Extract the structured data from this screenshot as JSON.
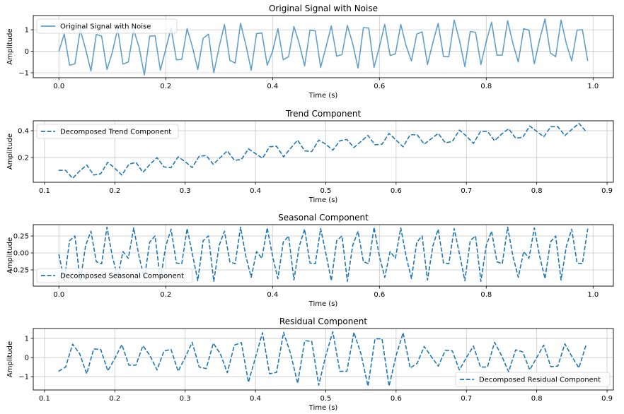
{
  "chart_data": [
    {
      "type": "line",
      "title": "Original Signal with Noise",
      "xlabel": "Time (s)",
      "ylabel": "Amplitude",
      "xlim": [
        -0.048,
        1.038
      ],
      "ylim": [
        -1.23,
        1.66
      ],
      "xticks": [
        0.0,
        0.2,
        0.4,
        0.6,
        0.8,
        1.0
      ],
      "xtick_labels": [
        "0.0",
        "0.2",
        "0.4",
        "0.6",
        "0.8",
        "1.0"
      ],
      "yticks": [
        -1,
        0,
        1
      ],
      "ytick_labels": [
        "−1",
        "0",
        "1"
      ],
      "grid": true,
      "legend": {
        "label": "Original Signal with Noise",
        "placement": "upper-left"
      },
      "style": {
        "color": "#1f77b4",
        "alpha": 0.7,
        "dashed": false
      },
      "x_start": 0.0,
      "x_step": 0.01,
      "values": [
        0.0,
        0.8,
        -0.65,
        -0.58,
        1.0,
        0.1,
        -0.92,
        0.78,
        0.7,
        -0.85,
        -0.05,
        1.05,
        -0.6,
        -0.5,
        1.0,
        0.2,
        -1.1,
        0.7,
        0.72,
        -0.88,
        0.1,
        1.08,
        -0.4,
        -0.38,
        1.05,
        0.2,
        -0.85,
        0.6,
        0.8,
        -1.0,
        0.2,
        1.25,
        -0.42,
        -0.55,
        1.3,
        0.3,
        -0.88,
        0.82,
        0.85,
        -0.65,
        0.0,
        1.05,
        -0.4,
        -0.25,
        1.15,
        0.35,
        -0.68,
        0.98,
        0.95,
        -0.75,
        0.2,
        1.18,
        -0.23,
        -0.15,
        1.2,
        0.35,
        -0.78,
        1.1,
        1.08,
        -0.75,
        0.2,
        1.25,
        -0.2,
        -0.12,
        1.25,
        0.25,
        -0.45,
        0.8,
        0.9,
        -0.62,
        0.4,
        1.3,
        -0.25,
        -0.25,
        1.45,
        0.5,
        -0.72,
        0.92,
        0.88,
        -0.62,
        0.45,
        1.35,
        -0.18,
        -0.18,
        1.42,
        0.35,
        -0.5,
        1.05,
        0.98,
        -0.58,
        0.55,
        1.5,
        -0.08,
        -0.25,
        1.45,
        0.35,
        -0.45,
        0.98,
        1.0,
        -0.45
      ]
    },
    {
      "type": "line",
      "title": "Trend Component",
      "xlabel": "Time (s)",
      "ylabel": "Amplitude",
      "xlim": [
        0.084,
        0.909
      ],
      "ylim": [
        0.016,
        0.474
      ],
      "xticks": [
        0.1,
        0.2,
        0.3,
        0.4,
        0.5,
        0.6,
        0.7,
        0.8,
        0.9
      ],
      "xtick_labels": [
        "0.1",
        "0.2",
        "0.3",
        "0.4",
        "0.5",
        "0.6",
        "0.7",
        "0.8",
        "0.9"
      ],
      "yticks": [
        0.2,
        0.4
      ],
      "ytick_labels": [
        "0.2",
        "0.4"
      ],
      "grid": true,
      "legend": {
        "label": "Decomposed Trend Component",
        "placement": "upper-left"
      },
      "style": {
        "color": "#1f77b4",
        "alpha": 1,
        "dashed": true
      },
      "x_start": 0.12,
      "x_step": 0.01,
      "values": [
        0.105,
        0.105,
        0.045,
        0.1,
        0.145,
        0.07,
        0.08,
        0.165,
        0.12,
        0.07,
        0.15,
        0.165,
        0.09,
        0.15,
        0.2,
        0.13,
        0.125,
        0.205,
        0.17,
        0.125,
        0.21,
        0.215,
        0.15,
        0.2,
        0.25,
        0.18,
        0.185,
        0.265,
        0.23,
        0.195,
        0.28,
        0.285,
        0.205,
        0.27,
        0.33,
        0.25,
        0.245,
        0.33,
        0.3,
        0.255,
        0.325,
        0.335,
        0.275,
        0.32,
        0.365,
        0.295,
        0.3,
        0.38,
        0.33,
        0.28,
        0.37,
        0.37,
        0.3,
        0.34,
        0.38,
        0.31,
        0.32,
        0.405,
        0.36,
        0.305,
        0.395,
        0.395,
        0.325,
        0.375,
        0.415,
        0.345,
        0.35,
        0.435,
        0.395,
        0.355,
        0.43,
        0.43,
        0.365,
        0.41,
        0.455,
        0.395
      ]
    },
    {
      "type": "line",
      "title": "Seasonal Component",
      "xlabel": "Time (s)",
      "ylabel": "Amplitude",
      "xlim": [
        -0.048,
        1.038
      ],
      "ylim": [
        -0.49,
        0.417
      ],
      "xticks": [
        0.0,
        0.2,
        0.4,
        0.6,
        0.8,
        1.0
      ],
      "xtick_labels": [
        "0.0",
        "0.2",
        "0.4",
        "0.6",
        "0.8",
        "1.0"
      ],
      "yticks": [
        -0.25,
        0.0,
        0.25
      ],
      "ytick_labels": [
        "−0.25",
        "0.00",
        "0.25"
      ],
      "grid": true,
      "legend": {
        "label": "Decomposed Seasonal Component",
        "placement": "lower-left"
      },
      "style": {
        "color": "#1f77b4",
        "alpha": 1,
        "dashed": true
      },
      "x_start": 0.0,
      "x_step": 0.01,
      "values": [
        -0.02,
        -0.41,
        0.18,
        0.25,
        -0.42,
        0.11,
        0.32,
        -0.13,
        -0.16,
        0.38,
        -0.05,
        -0.36,
        0.02,
        -0.08,
        0.37,
        -0.05,
        -0.38,
        0.16,
        0.25,
        -0.4,
        0.1,
        0.35,
        -0.15,
        -0.16,
        0.36,
        -0.02,
        -0.41,
        0.18,
        0.25,
        -0.42,
        0.11,
        0.32,
        -0.13,
        -0.16,
        0.38,
        -0.05,
        -0.36,
        0.02,
        -0.08,
        0.37,
        -0.05,
        -0.38,
        0.16,
        0.25,
        -0.4,
        0.1,
        0.35,
        -0.15,
        -0.16,
        0.36,
        -0.02,
        -0.41,
        0.18,
        0.25,
        -0.42,
        0.11,
        0.32,
        -0.13,
        -0.16,
        0.38,
        -0.05,
        -0.36,
        0.02,
        -0.08,
        0.37,
        -0.05,
        -0.38,
        0.16,
        0.25,
        -0.4,
        0.1,
        0.35,
        -0.15,
        -0.16,
        0.36,
        -0.02,
        -0.41,
        0.18,
        0.25,
        -0.42,
        0.11,
        0.32,
        -0.13,
        -0.16,
        0.38,
        -0.05,
        -0.36,
        0.02,
        -0.08,
        0.37,
        -0.05,
        -0.38,
        0.16,
        0.25,
        -0.4,
        0.1,
        0.35,
        -0.15,
        -0.16,
        0.36
      ]
    },
    {
      "type": "line",
      "title": "Residual Component",
      "xlabel": "Time (s)",
      "ylabel": "Amplitude",
      "xlim": [
        0.084,
        0.909
      ],
      "ylim": [
        -1.7,
        1.52
      ],
      "xticks": [
        0.1,
        0.2,
        0.3,
        0.4,
        0.5,
        0.6,
        0.7,
        0.8,
        0.9
      ],
      "xtick_labels": [
        "0.1",
        "0.2",
        "0.3",
        "0.4",
        "0.5",
        "0.6",
        "0.7",
        "0.8",
        "0.9"
      ],
      "yticks": [
        -1,
        0,
        1
      ],
      "ytick_labels": [
        "−1",
        "0",
        "1"
      ],
      "grid": true,
      "legend": {
        "label": "Decomposed Residual Component",
        "placement": "lower-right"
      },
      "style": {
        "color": "#1f77b4",
        "alpha": 1,
        "dashed": true
      },
      "x_start": 0.12,
      "x_step": 0.01,
      "values": [
        -0.72,
        -0.5,
        0.7,
        0.2,
        -0.85,
        0.45,
        0.42,
        -0.7,
        -0.05,
        0.68,
        -0.4,
        -0.4,
        0.62,
        0.1,
        -0.65,
        0.35,
        0.42,
        -0.72,
        0.0,
        0.8,
        -0.5,
        -0.58,
        0.75,
        0.2,
        -0.8,
        0.65,
        0.78,
        -1.3,
        0.0,
        1.3,
        -0.85,
        -0.78,
        1.32,
        0.2,
        -1.35,
        0.88,
        0.85,
        -1.45,
        0.1,
        1.35,
        -0.72,
        -0.72,
        1.32,
        0.2,
        -1.5,
        0.98,
        0.98,
        -1.5,
        0.1,
        1.3,
        -0.55,
        -0.3,
        0.58,
        0.05,
        -0.45,
        0.38,
        0.35,
        -0.65,
        0.0,
        0.6,
        -0.5,
        -0.5,
        0.8,
        0.1,
        -0.75,
        0.4,
        0.3,
        -0.65,
        0.0,
        0.65,
        -0.48,
        -0.45,
        0.72,
        0.05,
        -0.55,
        0.65
      ]
    }
  ]
}
